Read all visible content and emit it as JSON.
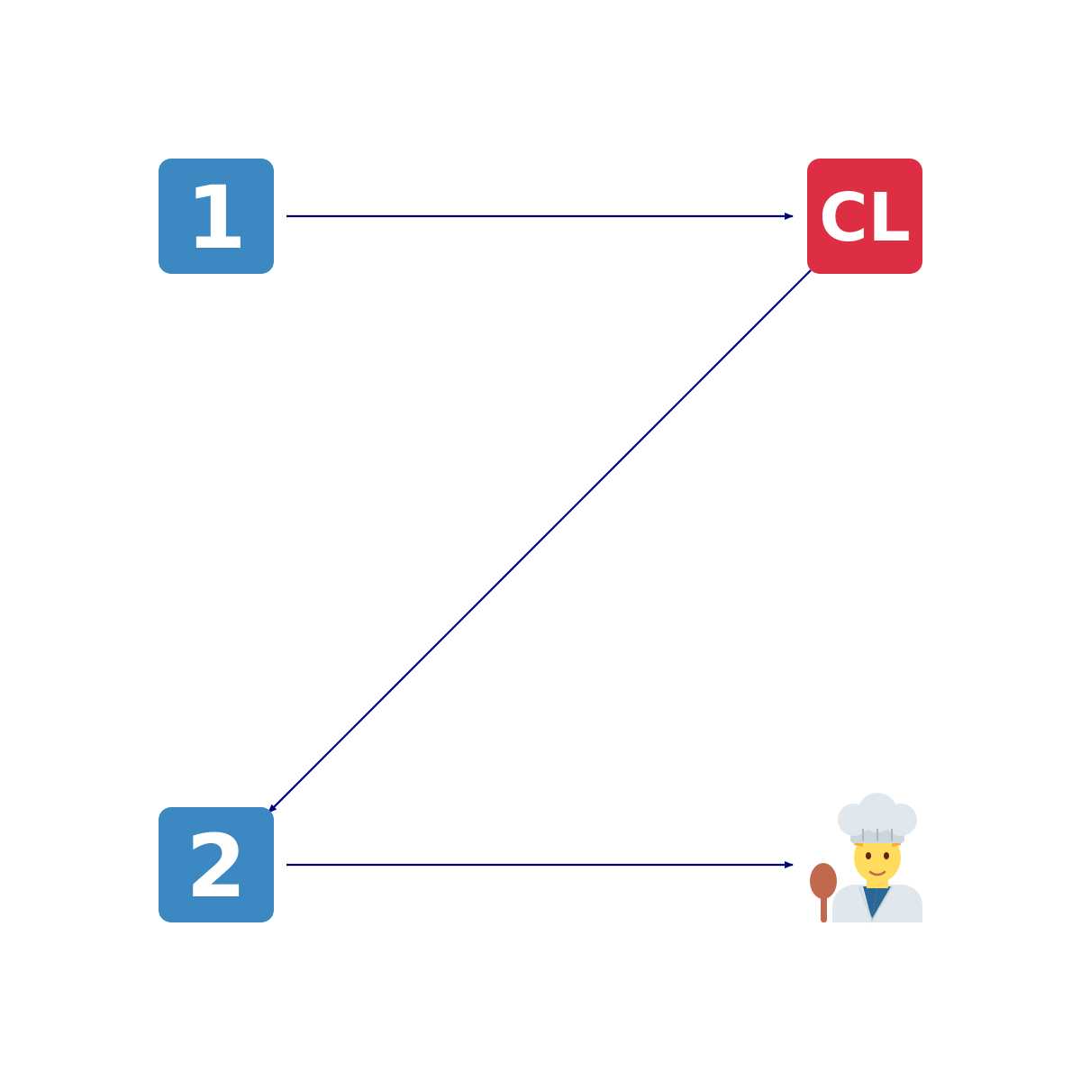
{
  "diagram": {
    "nodes": [
      {
        "id": "n1",
        "kind": "keycap",
        "text": "1",
        "icon": "keycap-digit-one-icon",
        "color": "#3B88C3"
      },
      {
        "id": "ncl",
        "kind": "keycap",
        "text": "CL",
        "icon": "cl-button-icon",
        "color": "#DD2E44"
      },
      {
        "id": "n2",
        "kind": "keycap",
        "text": "2",
        "icon": "keycap-digit-two-icon",
        "color": "#3B88C3"
      },
      {
        "id": "ncook",
        "kind": "emoji",
        "icon": "man-cook-icon"
      }
    ],
    "edges": [
      {
        "from": "n1",
        "to": "ncl"
      },
      {
        "from": "ncl",
        "to": "n2"
      },
      {
        "from": "n2",
        "to": "ncook"
      }
    ],
    "edge_color": "#000080"
  }
}
